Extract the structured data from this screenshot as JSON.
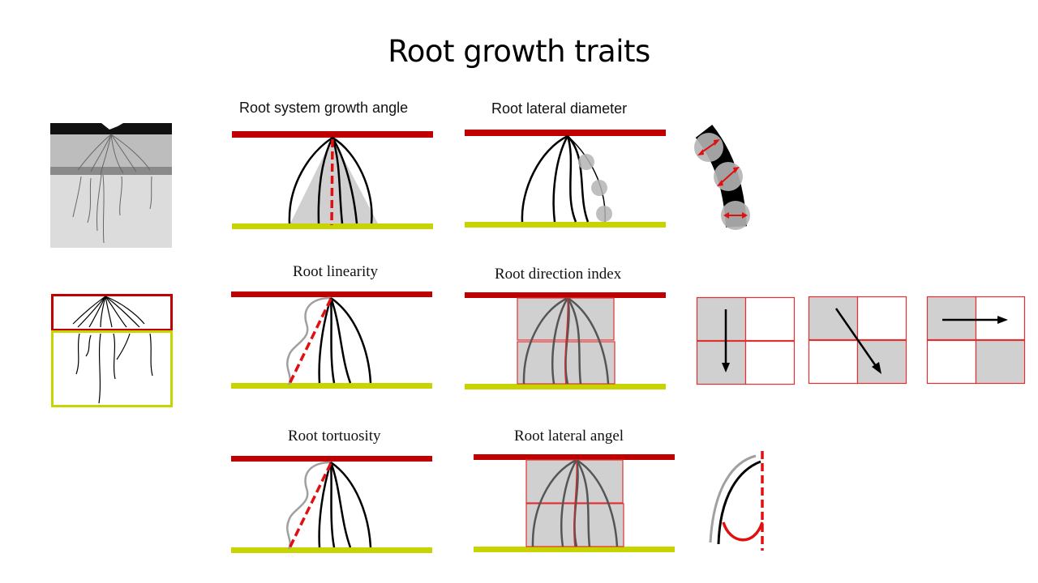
{
  "slide": {
    "title": "Root growth traits"
  },
  "panels": {
    "growth_angle": "Root system growth angle",
    "lateral_diameter": "Root lateral diameter",
    "linearity": "Root linearity",
    "direction_index": "Root direction index",
    "tortuosity": "Root tortuosity",
    "lateral_angel": "Root lateral angel"
  },
  "colors": {
    "top_bar": "#c00000",
    "bottom_bar": "#c8d400",
    "highlight": "#e01010",
    "shade": "#d0d0d0",
    "root": "#000000",
    "grey_root": "#a0a0a0"
  },
  "icons": [
    "root-photo",
    "root-zone-schematic",
    "down-arrow-icon",
    "diagonal-arrow-icon",
    "right-arrow-icon",
    "diameter-arrow-icon"
  ]
}
